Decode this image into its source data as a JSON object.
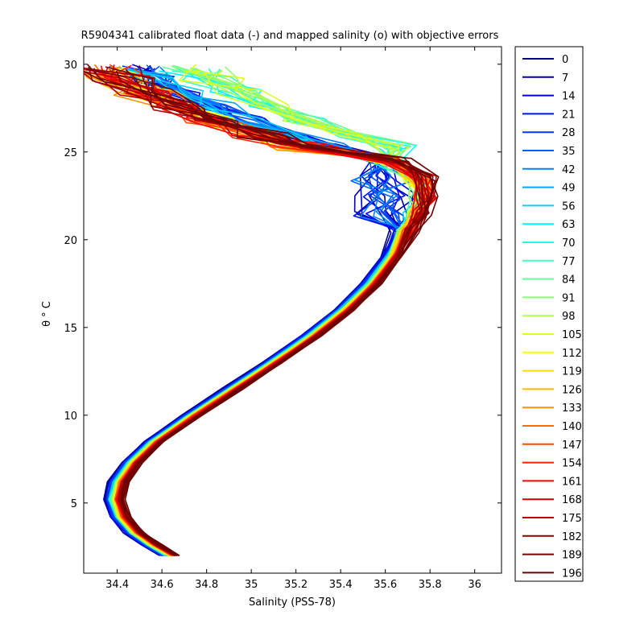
{
  "chart_data": {
    "type": "line",
    "title": "R5904341 calibrated float data (-) and mapped salinity (o) with objective errors",
    "xlabel": "Salinity (PSS-78)",
    "ylabel": "θ ° C",
    "xlim": [
      34.25,
      36.12
    ],
    "ylim": [
      1.0,
      31.0
    ],
    "xticks": [
      34.4,
      34.6,
      34.8,
      35,
      35.2,
      35.4,
      35.6,
      35.8,
      36
    ],
    "xtick_labels": [
      "34.4",
      "34.6",
      "34.8",
      "35",
      "35.2",
      "35.4",
      "35.6",
      "35.8",
      "36"
    ],
    "yticks": [
      5,
      10,
      15,
      20,
      25,
      30
    ],
    "ytick_labels": [
      "5",
      "10",
      "15",
      "20",
      "25",
      "30"
    ],
    "legend_placement": "outside-right",
    "legend": [
      {
        "name": "0",
        "color": "#000090"
      },
      {
        "name": "7",
        "color": "#0000B4"
      },
      {
        "name": "14",
        "color": "#0000DC"
      },
      {
        "name": "21",
        "color": "#0010FF"
      },
      {
        "name": "28",
        "color": "#0038FF"
      },
      {
        "name": "35",
        "color": "#0060FF"
      },
      {
        "name": "42",
        "color": "#0084FF"
      },
      {
        "name": "49",
        "color": "#00A8FF"
      },
      {
        "name": "56",
        "color": "#00D0FF"
      },
      {
        "name": "63",
        "color": "#00F4FF"
      },
      {
        "name": "70",
        "color": "#1CFFE4"
      },
      {
        "name": "77",
        "color": "#40FFC0"
      },
      {
        "name": "84",
        "color": "#68FF98"
      },
      {
        "name": "91",
        "color": "#8CFF74"
      },
      {
        "name": "98",
        "color": "#B0FF50"
      },
      {
        "name": "105",
        "color": "#D8FF28"
      },
      {
        "name": "112",
        "color": "#FCFF04"
      },
      {
        "name": "119",
        "color": "#FFDC00"
      },
      {
        "name": "126",
        "color": "#FFB800"
      },
      {
        "name": "133",
        "color": "#FF9000"
      },
      {
        "name": "140",
        "color": "#FF6C00"
      },
      {
        "name": "147",
        "color": "#FF4800"
      },
      {
        "name": "154",
        "color": "#FF2000"
      },
      {
        "name": "161",
        "color": "#F80000"
      },
      {
        "name": "168",
        "color": "#D40000"
      },
      {
        "name": "175",
        "color": "#B00000"
      },
      {
        "name": "182",
        "color": "#8C0000"
      },
      {
        "name": "189",
        "color": "#7A0000"
      },
      {
        "name": "196",
        "color": "#6A0000"
      }
    ],
    "profile_shape": {
      "description_points_theta_salinity": [
        [
          2.0,
          34.64
        ],
        [
          2.6,
          34.56
        ],
        [
          3.3,
          34.48
        ],
        [
          4.2,
          34.42
        ],
        [
          5.2,
          34.39
        ],
        [
          6.2,
          34.41
        ],
        [
          7.3,
          34.47
        ],
        [
          8.5,
          34.57
        ],
        [
          10.0,
          34.74
        ],
        [
          11.5,
          34.92
        ],
        [
          13.0,
          35.1
        ],
        [
          14.5,
          35.27
        ],
        [
          16.0,
          35.42
        ],
        [
          17.5,
          35.54
        ],
        [
          19.0,
          35.63
        ],
        [
          20.5,
          35.7
        ],
        [
          21.5,
          35.74
        ],
        [
          22.5,
          35.77
        ],
        [
          23.5,
          35.74
        ],
        [
          24.5,
          35.62
        ],
        [
          25.3,
          35.4
        ],
        [
          26.0,
          35.2
        ],
        [
          26.8,
          35.0
        ],
        [
          27.6,
          34.85
        ],
        [
          28.4,
          34.7
        ],
        [
          29.2,
          34.58
        ],
        [
          29.8,
          34.5
        ]
      ]
    }
  }
}
